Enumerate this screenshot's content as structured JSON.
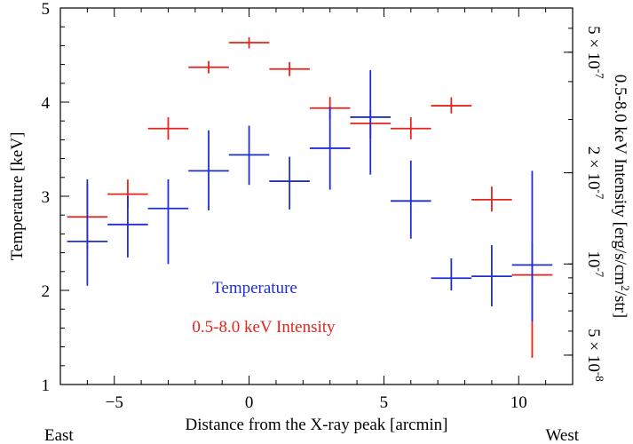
{
  "chart_data": {
    "type": "scatter",
    "xlabel": "Distance from the X-ray peak [arcmin]",
    "ylabel": "Temperature [keV]",
    "y2label": "0.5-8.0 keV Intensity [erg/s/cm²/str]",
    "xlim": [
      -7,
      12
    ],
    "ylim": [
      1,
      5
    ],
    "y2_scale": "log",
    "y2lim": [
      4e-08,
      7e-07
    ],
    "xticks": [
      -5,
      0,
      5,
      10
    ],
    "xtick_labels": [
      "−5",
      "0",
      "5",
      "10"
    ],
    "yticks": [
      1,
      2,
      3,
      4,
      5
    ],
    "ytick_labels": [
      "1",
      "2",
      "3",
      "4",
      "5"
    ],
    "y2ticks": [
      {
        "value": 5e-07,
        "mant": "5 × 10",
        "exp": "-7"
      },
      {
        "value": 2e-07,
        "mant": "2 × 10",
        "exp": "-7"
      },
      {
        "value": 1e-07,
        "mant": "10",
        "exp": "-7"
      },
      {
        "value": 5e-08,
        "mant": "5 × 10",
        "exp": "-8"
      }
    ],
    "direction_left": "East",
    "direction_right": "West",
    "colors": {
      "temperature": "#1f2fd6",
      "intensity": "#e8231c"
    },
    "legend": {
      "placement": "lower-center",
      "entries": [
        "Temperature",
        "0.5-8.0 keV Intensity"
      ]
    },
    "series": [
      {
        "name": "Temperature",
        "axis": "left",
        "points": [
          {
            "x": -6.0,
            "xerr": 0.75,
            "y": 2.52,
            "ylo": 2.05,
            "yhi": 3.18
          },
          {
            "x": -4.5,
            "xerr": 0.75,
            "y": 2.7,
            "ylo": 2.35,
            "yhi": 3.0
          },
          {
            "x": -3.0,
            "xerr": 0.75,
            "y": 2.87,
            "ylo": 2.28,
            "yhi": 3.18
          },
          {
            "x": -1.5,
            "xerr": 0.75,
            "y": 3.27,
            "ylo": 2.85,
            "yhi": 3.7
          },
          {
            "x": 0.0,
            "xerr": 0.75,
            "y": 3.44,
            "ylo": 3.12,
            "yhi": 3.75
          },
          {
            "x": 1.5,
            "xerr": 0.75,
            "y": 3.16,
            "ylo": 2.86,
            "yhi": 3.42
          },
          {
            "x": 3.0,
            "xerr": 0.75,
            "y": 3.51,
            "ylo": 3.07,
            "yhi": 3.95
          },
          {
            "x": 4.5,
            "xerr": 0.75,
            "y": 3.84,
            "ylo": 3.23,
            "yhi": 4.34
          },
          {
            "x": 6.0,
            "xerr": 0.75,
            "y": 2.95,
            "ylo": 2.55,
            "yhi": 3.38
          },
          {
            "x": 7.5,
            "xerr": 0.75,
            "y": 2.13,
            "ylo": 2.0,
            "yhi": 2.34
          },
          {
            "x": 9.0,
            "xerr": 0.75,
            "y": 2.15,
            "ylo": 1.83,
            "yhi": 2.48
          },
          {
            "x": 10.5,
            "xerr": 0.75,
            "y": 2.27,
            "ylo": 1.67,
            "yhi": 3.27
          }
        ]
      },
      {
        "name": "0.5-8.0 keV Intensity",
        "axis": "right",
        "points": [
          {
            "x": -6.0,
            "xerr": 0.75,
            "y": 1.43e-07,
            "ylo": 1.12e-07,
            "yhi": 1.84e-07
          },
          {
            "x": -4.5,
            "xerr": 0.75,
            "y": 1.7e-07,
            "ylo": 1.53e-07,
            "yhi": 1.9e-07
          },
          {
            "x": -3.0,
            "xerr": 0.75,
            "y": 2.8e-07,
            "ylo": 2.57e-07,
            "yhi": 3.05e-07
          },
          {
            "x": -1.5,
            "xerr": 0.75,
            "y": 4.46e-07,
            "ylo": 4.26e-07,
            "yhi": 4.68e-07
          },
          {
            "x": 0.0,
            "xerr": 0.75,
            "y": 5.38e-07,
            "ylo": 5.15e-07,
            "yhi": 5.6e-07
          },
          {
            "x": 1.5,
            "xerr": 0.75,
            "y": 4.4e-07,
            "ylo": 4.17e-07,
            "yhi": 4.64e-07
          },
          {
            "x": 3.0,
            "xerr": 0.75,
            "y": 3.27e-07,
            "ylo": 3e-07,
            "yhi": 3.56e-07
          },
          {
            "x": 4.5,
            "xerr": 0.75,
            "y": 2.91e-07,
            "ylo": 2.6e-07,
            "yhi": 3.22e-07
          },
          {
            "x": 6.0,
            "xerr": 0.75,
            "y": 2.8e-07,
            "ylo": 2.58e-07,
            "yhi": 3.05e-07
          },
          {
            "x": 7.5,
            "xerr": 0.75,
            "y": 3.33e-07,
            "ylo": 3.14e-07,
            "yhi": 3.55e-07
          },
          {
            "x": 9.0,
            "xerr": 0.75,
            "y": 1.63e-07,
            "ylo": 1.49e-07,
            "yhi": 1.8e-07
          },
          {
            "x": 10.5,
            "xerr": 0.75,
            "y": 9.2e-08,
            "ylo": 4.9e-08,
            "yhi": 1.17e-07
          }
        ]
      }
    ]
  }
}
